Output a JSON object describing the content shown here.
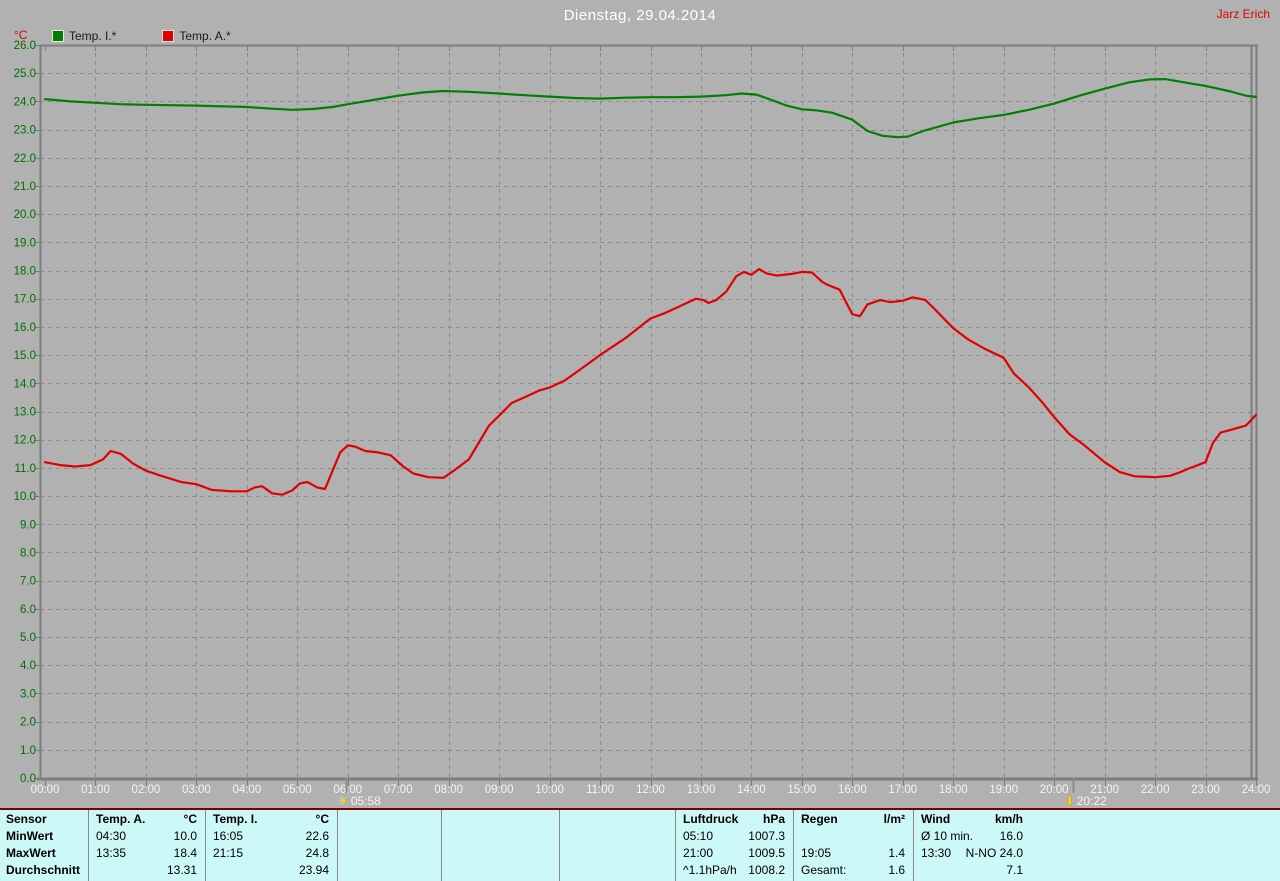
{
  "header": {
    "title": "Dienstag, 29.04.2014",
    "author": "Jarz Erich"
  },
  "axis_unit": "°C",
  "legend": [
    {
      "label": "Temp. I.*",
      "color": "#008000"
    },
    {
      "label": "Temp. A.*",
      "color": "#e10000"
    }
  ],
  "chart_data": {
    "type": "line",
    "title": "Dienstag, 29.04.2014",
    "xlabel": "",
    "ylabel": "°C",
    "xlim_hours": [
      0,
      24
    ],
    "ylim": [
      0,
      26
    ],
    "ystep": 1,
    "grid": true,
    "x_tick_labels": [
      "00:00",
      "01:00",
      "02:00",
      "03:00",
      "04:00",
      "05:00",
      "06:00",
      "07:00",
      "08:00",
      "09:00",
      "10:00",
      "11:00",
      "12:00",
      "13:00",
      "14:00",
      "15:00",
      "16:00",
      "17:00",
      "18:00",
      "19:00",
      "20:00",
      "21:00",
      "22:00",
      "23:00",
      "24:00"
    ],
    "colors": {
      "y_tick_text": "#007000",
      "x_tick_text": "#f4f4f4",
      "gridline": "#8c8c8c",
      "frame": "#7d7d7d"
    },
    "series": [
      {
        "name": "Temp. I.*",
        "color": "#008000",
        "points": [
          [
            0,
            24.08
          ],
          [
            0.5,
            24.0
          ],
          [
            1,
            23.95
          ],
          [
            1.5,
            23.9
          ],
          [
            2,
            23.88
          ],
          [
            3,
            23.85
          ],
          [
            4,
            23.8
          ],
          [
            4.5,
            23.74
          ],
          [
            4.9,
            23.7
          ],
          [
            5.3,
            23.73
          ],
          [
            5.7,
            23.8
          ],
          [
            6,
            23.9
          ],
          [
            6.5,
            24.05
          ],
          [
            7,
            24.2
          ],
          [
            7.5,
            24.32
          ],
          [
            7.9,
            24.37
          ],
          [
            8.4,
            24.34
          ],
          [
            9,
            24.28
          ],
          [
            9.5,
            24.22
          ],
          [
            10,
            24.17
          ],
          [
            10.5,
            24.12
          ],
          [
            11,
            24.1
          ],
          [
            11.5,
            24.13
          ],
          [
            12,
            24.15
          ],
          [
            12.5,
            24.15
          ],
          [
            13,
            24.17
          ],
          [
            13.5,
            24.22
          ],
          [
            13.8,
            24.28
          ],
          [
            14.1,
            24.24
          ],
          [
            14.4,
            24.05
          ],
          [
            14.7,
            23.85
          ],
          [
            15,
            23.72
          ],
          [
            15.3,
            23.68
          ],
          [
            15.6,
            23.6
          ],
          [
            16,
            23.35
          ],
          [
            16.3,
            22.95
          ],
          [
            16.6,
            22.78
          ],
          [
            16.9,
            22.73
          ],
          [
            17.1,
            22.75
          ],
          [
            17.4,
            22.95
          ],
          [
            17.7,
            23.1
          ],
          [
            18,
            23.25
          ],
          [
            18.5,
            23.4
          ],
          [
            19,
            23.52
          ],
          [
            19.5,
            23.7
          ],
          [
            20,
            23.92
          ],
          [
            20.5,
            24.2
          ],
          [
            21,
            24.45
          ],
          [
            21.5,
            24.68
          ],
          [
            21.9,
            24.78
          ],
          [
            22.2,
            24.79
          ],
          [
            22.5,
            24.7
          ],
          [
            23,
            24.55
          ],
          [
            23.5,
            24.35
          ],
          [
            23.8,
            24.2
          ],
          [
            24,
            24.16
          ]
        ]
      },
      {
        "name": "Temp. A.*",
        "color": "#e10000",
        "points": [
          [
            0,
            11.2
          ],
          [
            0.3,
            11.1
          ],
          [
            0.6,
            11.05
          ],
          [
            0.9,
            11.1
          ],
          [
            1.15,
            11.3
          ],
          [
            1.3,
            11.6
          ],
          [
            1.5,
            11.5
          ],
          [
            1.75,
            11.15
          ],
          [
            2,
            10.9
          ],
          [
            2.3,
            10.72
          ],
          [
            2.7,
            10.5
          ],
          [
            3,
            10.42
          ],
          [
            3.3,
            10.22
          ],
          [
            3.7,
            10.17
          ],
          [
            4,
            10.17
          ],
          [
            4.15,
            10.3
          ],
          [
            4.3,
            10.35
          ],
          [
            4.5,
            10.1
          ],
          [
            4.7,
            10.05
          ],
          [
            4.9,
            10.2
          ],
          [
            5.05,
            10.45
          ],
          [
            5.2,
            10.5
          ],
          [
            5.4,
            10.3
          ],
          [
            5.55,
            10.25
          ],
          [
            5.7,
            10.9
          ],
          [
            5.85,
            11.55
          ],
          [
            6,
            11.8
          ],
          [
            6.15,
            11.75
          ],
          [
            6.35,
            11.6
          ],
          [
            6.6,
            11.55
          ],
          [
            6.85,
            11.45
          ],
          [
            7.1,
            11.05
          ],
          [
            7.3,
            10.8
          ],
          [
            7.6,
            10.67
          ],
          [
            7.9,
            10.65
          ],
          [
            8.1,
            10.9
          ],
          [
            8.4,
            11.3
          ],
          [
            8.6,
            11.9
          ],
          [
            8.8,
            12.5
          ],
          [
            9,
            12.85
          ],
          [
            9.25,
            13.3
          ],
          [
            9.5,
            13.5
          ],
          [
            9.8,
            13.75
          ],
          [
            10,
            13.85
          ],
          [
            10.3,
            14.1
          ],
          [
            10.5,
            14.35
          ],
          [
            11,
            15.0
          ],
          [
            11.5,
            15.6
          ],
          [
            12,
            16.3
          ],
          [
            12.3,
            16.5
          ],
          [
            12.6,
            16.75
          ],
          [
            12.9,
            17.0
          ],
          [
            13.05,
            16.95
          ],
          [
            13.15,
            16.85
          ],
          [
            13.3,
            16.95
          ],
          [
            13.5,
            17.25
          ],
          [
            13.7,
            17.8
          ],
          [
            13.85,
            17.95
          ],
          [
            14,
            17.85
          ],
          [
            14.15,
            18.05
          ],
          [
            14.3,
            17.9
          ],
          [
            14.5,
            17.82
          ],
          [
            14.8,
            17.88
          ],
          [
            15,
            17.95
          ],
          [
            15.2,
            17.93
          ],
          [
            15.4,
            17.6
          ],
          [
            15.5,
            17.5
          ],
          [
            15.75,
            17.32
          ],
          [
            16,
            16.45
          ],
          [
            16.15,
            16.38
          ],
          [
            16.3,
            16.8
          ],
          [
            16.55,
            16.95
          ],
          [
            16.75,
            16.88
          ],
          [
            17,
            16.93
          ],
          [
            17.2,
            17.05
          ],
          [
            17.45,
            16.95
          ],
          [
            17.65,
            16.6
          ],
          [
            18,
            15.95
          ],
          [
            18.3,
            15.55
          ],
          [
            18.6,
            15.25
          ],
          [
            19,
            14.9
          ],
          [
            19.2,
            14.35
          ],
          [
            19.5,
            13.85
          ],
          [
            19.75,
            13.35
          ],
          [
            20,
            12.8
          ],
          [
            20.3,
            12.2
          ],
          [
            20.6,
            11.8
          ],
          [
            21,
            11.2
          ],
          [
            21.3,
            10.85
          ],
          [
            21.6,
            10.7
          ],
          [
            22,
            10.67
          ],
          [
            22.3,
            10.72
          ],
          [
            22.5,
            10.85
          ],
          [
            22.7,
            11.0
          ],
          [
            23,
            11.2
          ],
          [
            23.15,
            11.9
          ],
          [
            23.3,
            12.25
          ],
          [
            23.5,
            12.35
          ],
          [
            23.8,
            12.5
          ],
          [
            24,
            12.88
          ]
        ]
      }
    ],
    "sun_markers": {
      "sunrise": {
        "time": "05:58"
      },
      "sunset": {
        "time": "20:22"
      }
    }
  },
  "stats_table": {
    "row_labels": {
      "r0": "Sensor",
      "r1": "MinWert",
      "r2": "MaxWert",
      "r3": "Durchschnitt"
    },
    "groups": [
      {
        "name": "Temp. A.",
        "unit": "°C",
        "min_time": "04:30",
        "min_value": "10.0",
        "max_time": "13:35",
        "max_value": "18.4",
        "avg_label": "",
        "avg": "13.31"
      },
      {
        "name": "Temp. I.",
        "unit": "°C",
        "min_time": "16:05",
        "min_value": "22.6",
        "max_time": "21:15",
        "max_value": "24.8",
        "avg_label": "",
        "avg": "23.94"
      },
      {
        "name": "Luftdruck",
        "unit": "hPa",
        "min_time": "05:10",
        "min_value": "1007.3",
        "max_time": "21:00",
        "max_value": "1009.5",
        "avg_label": "^1.1hPa/h",
        "avg": "1008.2"
      },
      {
        "name": "Regen",
        "unit": "l/m²",
        "min_time": "",
        "min_value": "",
        "max_time": "19:05",
        "max_value": "1.4",
        "avg_label": "Gesamt:",
        "avg": "1.6"
      },
      {
        "name": "Wind",
        "unit": "km/h",
        "min_time": "Ø 10 min.",
        "min_value": "16.0",
        "max_time": "13:30",
        "max_value": "N-NO 24.0",
        "avg_label": "",
        "avg": "7.1"
      }
    ]
  }
}
